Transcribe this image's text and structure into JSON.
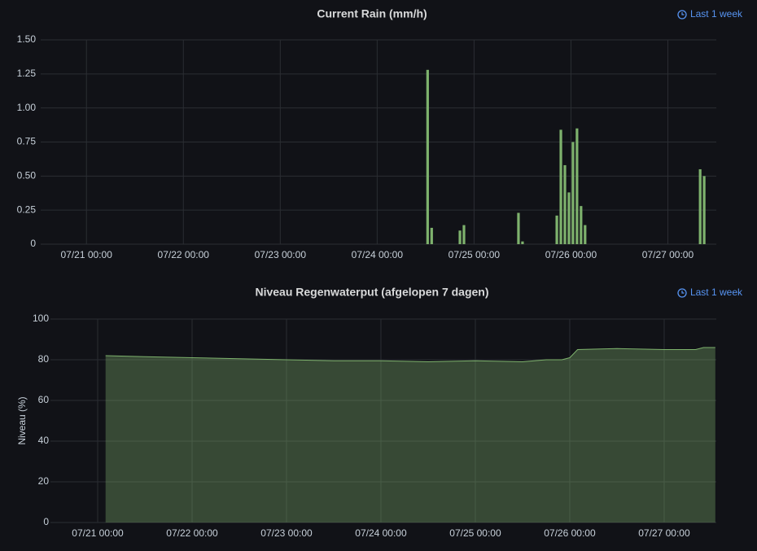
{
  "chart_data": [
    {
      "type": "bar",
      "title": "Current Rain (mm/h)",
      "time_range": "Last 1 week",
      "x": [
        "07/24 12:30",
        "07/24 13:30",
        "07/24 20:30",
        "07/24 21:30",
        "07/25 11:00",
        "07/25 12:00",
        "07/25 20:30",
        "07/25 21:30",
        "07/25 22:30",
        "07/25 23:30",
        "07/26 00:30",
        "07/26 01:30",
        "07/26 02:30",
        "07/26 03:30",
        "07/27 08:00",
        "07/27 09:00"
      ],
      "values": [
        1.28,
        0.12,
        0.1,
        0.14,
        0.23,
        0.02,
        0.21,
        0.84,
        0.58,
        0.38,
        0.75,
        0.85,
        0.28,
        0.14,
        0.55,
        0.5
      ],
      "color": "#7eb26d",
      "xlim": [
        "07/20 12:40",
        "07/27 12:00"
      ],
      "xticks": [
        "07/21 00:00",
        "07/22 00:00",
        "07/23 00:00",
        "07/24 00:00",
        "07/25 00:00",
        "07/26 00:00",
        "07/27 00:00"
      ],
      "ylim": [
        0,
        1.5
      ],
      "yticks": [
        0,
        0.25,
        {
          "value": 0.5,
          "label": "0.50"
        },
        0.75,
        {
          "value": 1,
          "label": "1.00"
        },
        1.25,
        {
          "value": 1.5,
          "label": "1.50"
        }
      ],
      "grid": true
    },
    {
      "type": "area",
      "title": "Niveau Regenwaterput (afgelopen 7 dagen)",
      "time_range": "Last 1 week",
      "y_label": "Niveau (%)",
      "x": [
        "07/21 02:00",
        "07/21 12:00",
        "07/22 00:00",
        "07/22 12:00",
        "07/23 00:00",
        "07/23 12:00",
        "07/24 00:00",
        "07/24 12:00",
        "07/25 00:00",
        "07/25 12:00",
        "07/25 18:00",
        "07/25 22:00",
        "07/26 00:00",
        "07/26 02:00",
        "07/26 12:00",
        "07/27 00:00",
        "07/27 08:00",
        "07/27 10:00",
        "07/27 13:00"
      ],
      "values": [
        82,
        81.5,
        81,
        80.5,
        80,
        79.5,
        79.5,
        79,
        79.5,
        79,
        80,
        80,
        81,
        85,
        85.5,
        85,
        85,
        86,
        86
      ],
      "color": "#7eb26d",
      "xlim": [
        "07/20 12:00",
        "07/27 13:15"
      ],
      "xticks": [
        "07/21 00:00",
        "07/22 00:00",
        "07/23 00:00",
        "07/24 00:00",
        "07/25 00:00",
        "07/26 00:00",
        "07/27 00:00"
      ],
      "ylim": [
        0,
        100
      ],
      "yticks": [
        0,
        20,
        40,
        60,
        80,
        100
      ],
      "grid": true
    }
  ]
}
